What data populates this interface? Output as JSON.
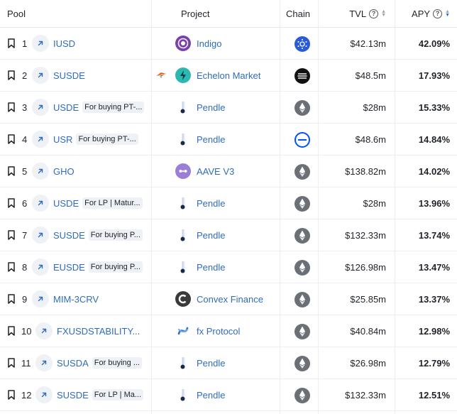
{
  "header": {
    "pool": "Pool",
    "project": "Project",
    "chain": "Chain",
    "tvl": "TVL",
    "apy": "APY",
    "help_glyph": "?"
  },
  "rows": [
    {
      "rank": "1",
      "pool": "IUSD",
      "tag": "",
      "project": "Indigo",
      "project_icon": "indigo-icon",
      "chain_icon": "cardano-icon",
      "tvl": "$42.13m",
      "apy": "42.09%"
    },
    {
      "rank": "2",
      "pool": "SUSDE",
      "tag": "",
      "project": "Echelon Market",
      "project_icon": "echelon-market-icon",
      "chain_icon": "aptos-icon",
      "tvl": "$48.5m",
      "apy": "17.93%"
    },
    {
      "rank": "3",
      "pool": "USDE",
      "tag": "For buying PT-...",
      "project": "Pendle",
      "project_icon": "pendle-icon",
      "chain_icon": "ethereum-icon",
      "tvl": "$28m",
      "apy": "15.33%"
    },
    {
      "rank": "4",
      "pool": "USR",
      "tag": "For buying PT-...",
      "project": "Pendle",
      "project_icon": "pendle-icon",
      "chain_icon": "base-icon",
      "tvl": "$48.6m",
      "apy": "14.84%"
    },
    {
      "rank": "5",
      "pool": "GHO",
      "tag": "",
      "project": "AAVE V3",
      "project_icon": "aave-icon",
      "chain_icon": "ethereum-icon",
      "tvl": "$138.82m",
      "apy": "14.02%"
    },
    {
      "rank": "6",
      "pool": "USDE",
      "tag": "For LP | Matur...",
      "project": "Pendle",
      "project_icon": "pendle-icon",
      "chain_icon": "ethereum-icon",
      "tvl": "$28m",
      "apy": "13.96%"
    },
    {
      "rank": "7",
      "pool": "SUSDE",
      "tag": "For buying P...",
      "project": "Pendle",
      "project_icon": "pendle-icon",
      "chain_icon": "ethereum-icon",
      "tvl": "$132.33m",
      "apy": "13.74%"
    },
    {
      "rank": "8",
      "pool": "EUSDE",
      "tag": "For buying P...",
      "project": "Pendle",
      "project_icon": "pendle-icon",
      "chain_icon": "ethereum-icon",
      "tvl": "$126.98m",
      "apy": "13.47%"
    },
    {
      "rank": "9",
      "pool": "MIM-3CRV",
      "tag": "",
      "project": "Convex Finance",
      "project_icon": "convex-finance-icon",
      "chain_icon": "ethereum-icon",
      "tvl": "$25.85m",
      "apy": "13.37%"
    },
    {
      "rank": "10",
      "pool": "FXUSDSTABILITY...",
      "tag": "",
      "project": "fx Protocol",
      "project_icon": "fx-protocol-icon",
      "chain_icon": "ethereum-icon",
      "tvl": "$40.84m",
      "apy": "12.98%"
    },
    {
      "rank": "11",
      "pool": "SUSDA",
      "tag": "For buying ...",
      "project": "Pendle",
      "project_icon": "pendle-icon",
      "chain_icon": "ethereum-icon",
      "tvl": "$26.98m",
      "apy": "12.79%"
    },
    {
      "rank": "12",
      "pool": "SUSDE",
      "tag": "For LP | Ma...",
      "project": "Pendle",
      "project_icon": "pendle-icon",
      "chain_icon": "ethereum-icon",
      "tvl": "$132.33m",
      "apy": "12.51%"
    }
  ],
  "colors": {
    "link": "#2f6cbd",
    "indigo": "#7a3fb0",
    "echelon": "#2bb8b0",
    "aave": "#9b7fd6",
    "fx": "#2e6fd1",
    "cardano": "#2a5ad7",
    "base": "#0052ff"
  }
}
